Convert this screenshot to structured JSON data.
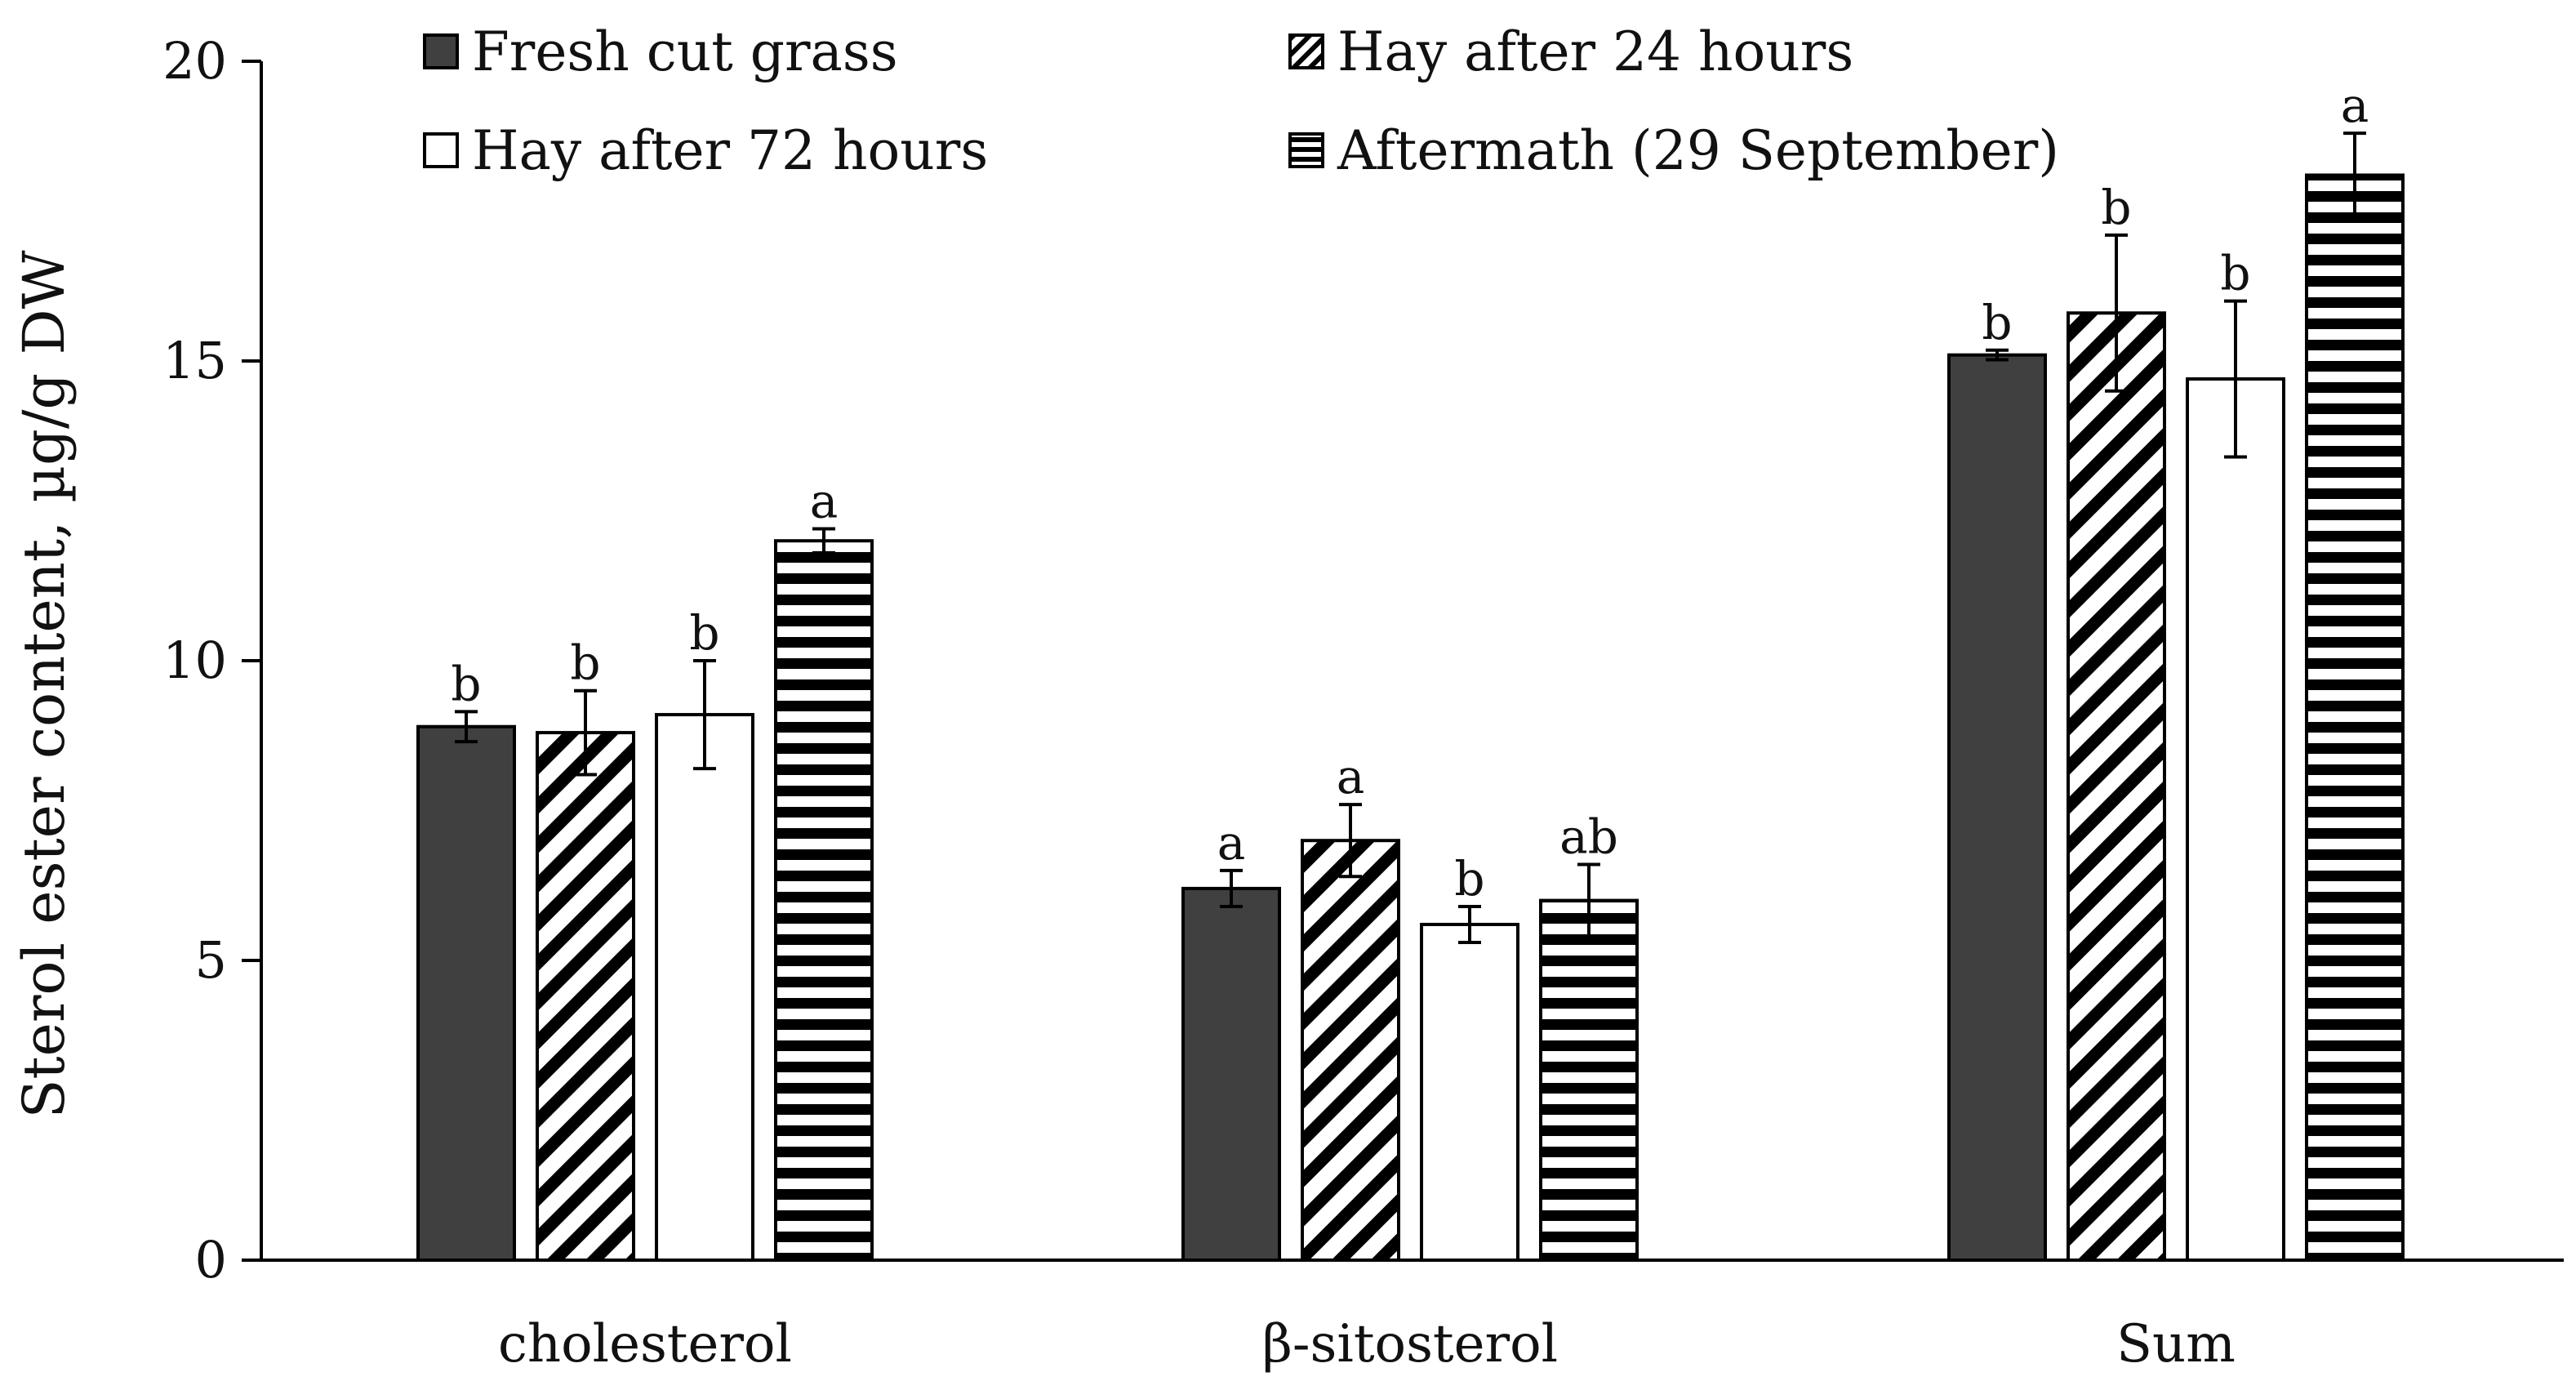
{
  "chart_data": {
    "type": "bar",
    "title": "",
    "xlabel": "",
    "ylabel": "Sterol ester content, µg/g DW",
    "ylim": [
      0,
      20
    ],
    "yticks": [
      0,
      5,
      10,
      15,
      20
    ],
    "grid": false,
    "legend_position": "top",
    "categories": [
      "cholesterol",
      "β-sitosterol",
      "Sum"
    ],
    "series": [
      {
        "name": "Fresh cut grass",
        "pattern": "solid-dark",
        "color": "#404040",
        "values": [
          8.9,
          6.2,
          15.1
        ],
        "errors": [
          0.25,
          0.3,
          0.08
        ],
        "labels": [
          "b",
          "a",
          "b"
        ]
      },
      {
        "name": "Hay after 24 hours",
        "pattern": "diagonal-stripes",
        "color": "#000000",
        "values": [
          8.8,
          7.0,
          15.8
        ],
        "errors": [
          0.7,
          0.6,
          1.3
        ],
        "labels": [
          "b",
          "a",
          "b"
        ]
      },
      {
        "name": "Hay after 72 hours",
        "pattern": "white",
        "color": "#ffffff",
        "values": [
          9.1,
          5.6,
          14.7
        ],
        "errors": [
          0.9,
          0.3,
          1.3
        ],
        "labels": [
          "b",
          "b",
          "b"
        ]
      },
      {
        "name": "Aftermath (29 September)",
        "pattern": "horizontal-stripes",
        "color": "#000000",
        "values": [
          12.0,
          6.0,
          18.1
        ],
        "errors": [
          0.2,
          0.6,
          0.7
        ],
        "labels": [
          "a",
          "ab",
          "a"
        ]
      }
    ]
  }
}
